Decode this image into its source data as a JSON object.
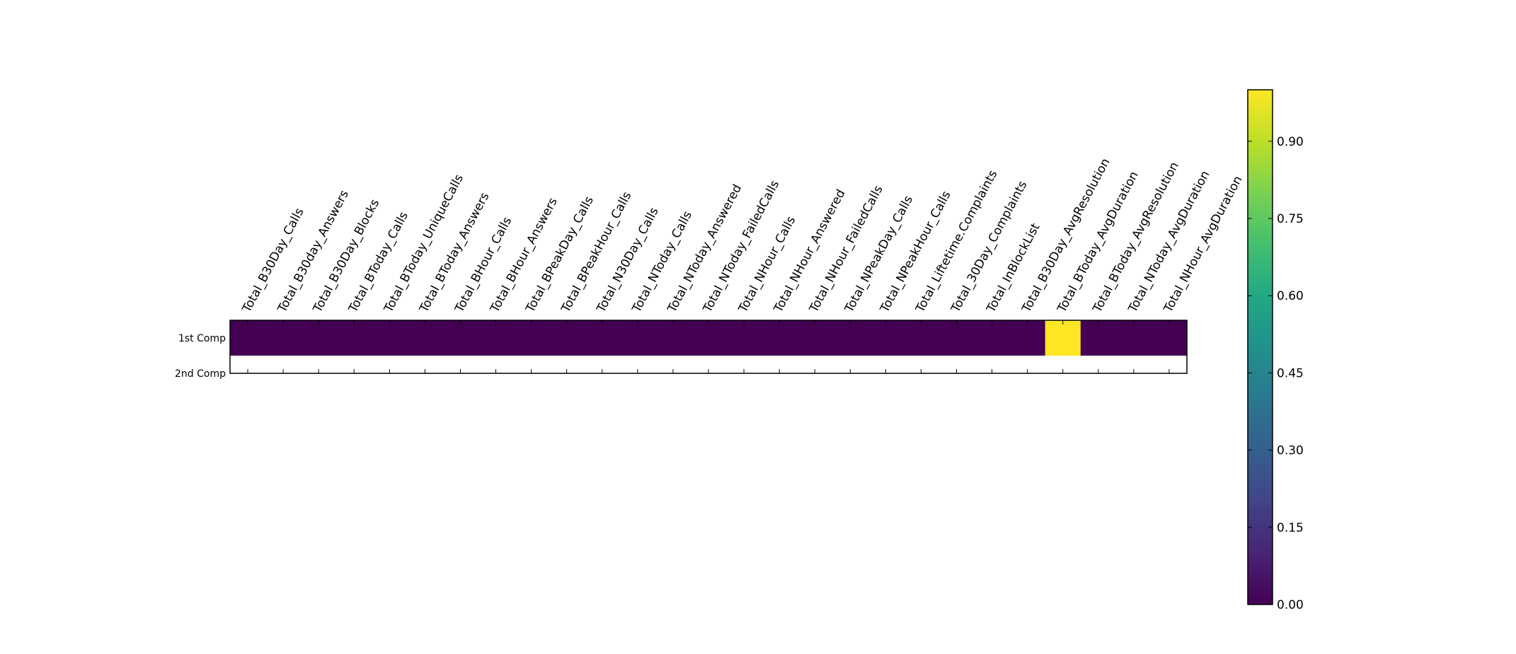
{
  "chart_data": {
    "type": "heatmap",
    "title": "",
    "xlabel": "",
    "ylabel": "",
    "x_categories": [
      "Total_B30Day_Calls",
      "Total_B30day_Answers",
      "Total_B30Day_Blocks",
      "Total_BToday_Calls",
      "Total_BToday_UniqueCalls",
      "Total_BToday_Answers",
      "Total_BHour_Calls",
      "Total_BHour_Answers",
      "Total_BPeakDay_Calls",
      "Total_BPeakHour_Calls",
      "Total_N30Day_Calls",
      "Total_NToday_Calls",
      "Total_NToday_Answered",
      "Total_NToday_FailedCalls",
      "Total_NHour_Calls",
      "Total_NHour_Answered",
      "Total_NHour_FailedCalls",
      "Total_NPeakDay_Calls",
      "Total_NPeakHour_Calls",
      "Total_Liftetime.Complaints",
      "Total_30Day_Complaints",
      "Total_InBlockList",
      "Total_B30Day_AvgResolution",
      "Total_BToday_AvgDuration",
      "Total_BToday_AvgResolution",
      "Total_NToday_AvgDuration",
      "Total_NHour_AvgDuration"
    ],
    "y_categories": [
      "1st Comp",
      "2nd Comp"
    ],
    "values": [
      [
        0,
        0,
        0,
        0,
        0,
        0,
        0,
        0,
        0,
        0,
        0,
        0,
        0,
        0,
        0,
        0,
        0,
        0,
        0,
        0,
        0,
        0,
        0,
        1,
        0,
        0,
        0
      ],
      [
        null,
        null,
        null,
        null,
        null,
        null,
        null,
        null,
        null,
        null,
        null,
        null,
        null,
        null,
        null,
        null,
        null,
        null,
        null,
        null,
        null,
        null,
        null,
        null,
        null,
        null,
        null
      ]
    ],
    "colormap": "viridis",
    "vmin": 0.0,
    "vmax": 1.0,
    "colorbar_ticks": [
      "0.00",
      "0.15",
      "0.30",
      "0.45",
      "0.60",
      "0.75",
      "0.90"
    ],
    "colorbar_tick_values": [
      0.0,
      0.15,
      0.3,
      0.45,
      0.6,
      0.75,
      0.9
    ],
    "grid": false
  }
}
